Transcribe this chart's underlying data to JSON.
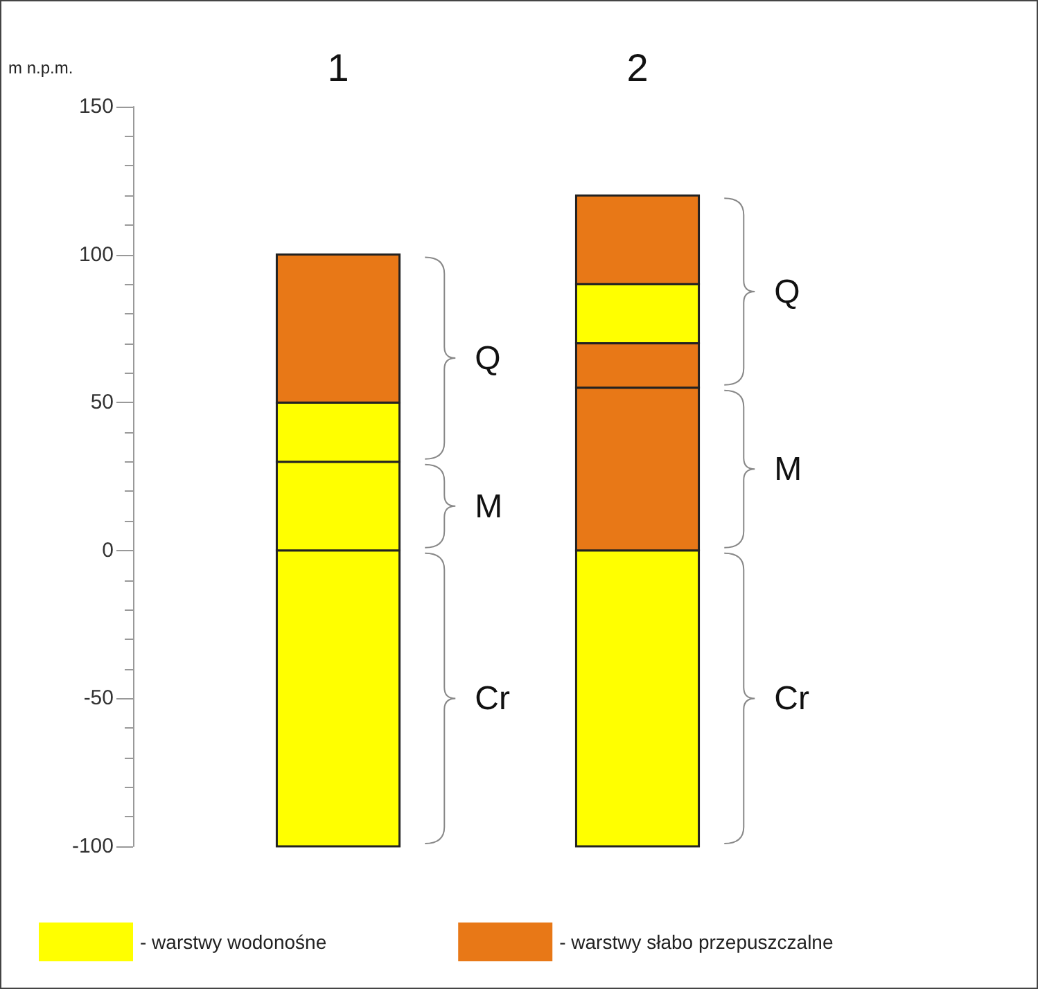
{
  "chart_data": {
    "type": "bar",
    "ylabel": "m n.p.m.",
    "categories": [
      "1",
      "2"
    ],
    "ylim": [
      -100,
      150
    ],
    "yticks": [
      -100,
      -50,
      0,
      50,
      100,
      150
    ],
    "grid": false,
    "legend": "bottom",
    "series": [
      {
        "name": "- warstwy wodonośne",
        "color": "#ffff00",
        "base": [
          -100,
          -100
        ],
        "values": [
          100,
          100
        ]
      },
      {
        "color": "#ffff00",
        "base": [
          0,
          70
        ],
        "values": [
          30,
          20
        ]
      },
      {
        "color": "#ffff00",
        "base": [
          30,
          null
        ],
        "values": [
          20,
          null
        ]
      },
      {
        "name": "- warstwy słabo przepuszczalne",
        "color": "#e87817",
        "base": [
          50,
          0
        ],
        "values": [
          50,
          55
        ]
      },
      {
        "color": "#e87817",
        "base": [
          null,
          55
        ],
        "values": [
          null,
          15
        ]
      },
      {
        "color": "#e87817",
        "base": [
          null,
          90
        ],
        "values": [
          null,
          30
        ]
      }
    ],
    "annotations": [
      "Q",
      "M",
      "Cr",
      "Q",
      "M",
      "Cr"
    ]
  }
}
